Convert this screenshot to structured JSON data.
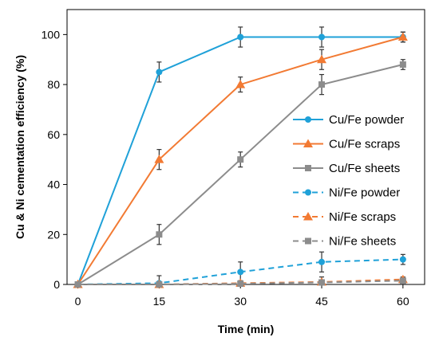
{
  "chart_data": {
    "type": "line",
    "title": "",
    "xlabel": "Time (min)",
    "ylabel": "Cu & Ni cementation efficiency (%)",
    "x": [
      0,
      15,
      30,
      45,
      60
    ],
    "x_ticks": [
      "0",
      "15",
      "30",
      "45",
      "60"
    ],
    "y_ticks": [
      "0",
      "20",
      "40",
      "60",
      "80",
      "100"
    ],
    "xlim": [
      -2,
      64
    ],
    "ylim": [
      0,
      110
    ],
    "grid": false,
    "legend_position": "right",
    "series": [
      {
        "name": "Cu/Fe powder",
        "values": [
          0,
          85,
          99,
          99,
          99
        ],
        "errors": [
          0,
          4,
          4,
          4,
          2
        ],
        "color": "#1fa1d8",
        "marker": "circle",
        "dashed": false
      },
      {
        "name": "Cu/Fe scraps",
        "values": [
          0,
          50,
          80,
          90,
          99
        ],
        "errors": [
          0,
          4,
          3,
          4,
          2
        ],
        "color": "#f27a33",
        "marker": "triangle",
        "dashed": false
      },
      {
        "name": "Cu/Fe sheets",
        "values": [
          0,
          20,
          50,
          80,
          88
        ],
        "errors": [
          0,
          4,
          3,
          4,
          2
        ],
        "color": "#8c8c8c",
        "marker": "square",
        "dashed": false
      },
      {
        "name": "Ni/Fe powder",
        "values": [
          0,
          0.5,
          5,
          9,
          10
        ],
        "errors": [
          0,
          3,
          4,
          4,
          2
        ],
        "color": "#1fa1d8",
        "marker": "circle",
        "dashed": true
      },
      {
        "name": "Ni/Fe scraps",
        "values": [
          0,
          0,
          0.5,
          1,
          2
        ],
        "errors": [
          0,
          1,
          1,
          2,
          1
        ],
        "color": "#f27a33",
        "marker": "triangle",
        "dashed": true
      },
      {
        "name": "Ni/Fe sheets",
        "values": [
          0,
          0,
          0.3,
          0.8,
          1.5
        ],
        "errors": [
          0,
          1,
          1,
          1,
          1
        ],
        "color": "#8c8c8c",
        "marker": "square",
        "dashed": true
      }
    ]
  }
}
